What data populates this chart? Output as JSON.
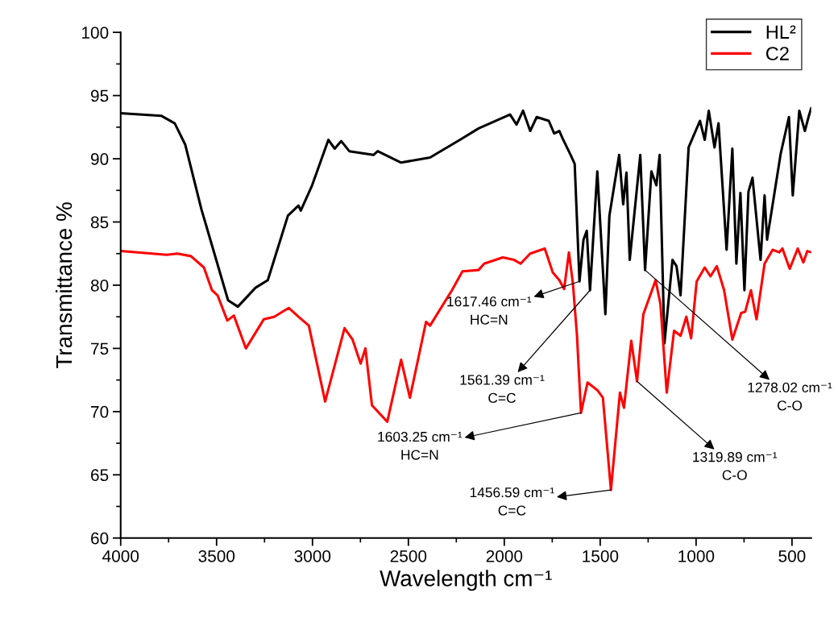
{
  "chart_data": {
    "type": "line",
    "xlabel": "Wavelength cm⁻¹",
    "ylabel": "Transmittance %",
    "xlim": [
      4000,
      400
    ],
    "xticks": [
      4000,
      3500,
      3000,
      2500,
      2000,
      1500,
      1000,
      500
    ],
    "ylim": [
      60,
      100
    ],
    "yticks": [
      60,
      65,
      70,
      75,
      80,
      85,
      90,
      95,
      100
    ],
    "grid": false,
    "legend": "top right",
    "line_style": "solid",
    "marker": "none",
    "series": [
      {
        "name": "HL²",
        "color": "#000000",
        "x": [
          4000,
          3789,
          3718,
          3663,
          3579,
          3440,
          3389,
          3297,
          3233,
          3128,
          3073,
          3061,
          3002,
          2917,
          2884,
          2850,
          2808,
          2682,
          2660,
          2538,
          2387,
          2231,
          2134,
          1970,
          1936,
          1902,
          1865,
          1831,
          1768,
          1740,
          1713,
          1696,
          1654,
          1633,
          1608,
          1587,
          1570,
          1553,
          1515,
          1473,
          1452,
          1401,
          1380,
          1363,
          1346,
          1291,
          1266,
          1233,
          1207,
          1190,
          1165,
          1123,
          1102,
          1081,
          1039,
          980,
          955,
          934,
          904,
          883,
          841,
          811,
          790,
          769,
          748,
          727,
          706,
          664,
          643,
          630,
          559,
          516,
          496,
          462,
          433,
          412,
          400
        ],
        "values": [
          93.6,
          93.4,
          92.8,
          91.1,
          86.0,
          78.8,
          78.3,
          79.8,
          80.4,
          85.5,
          86.3,
          85.9,
          87.9,
          91.5,
          90.8,
          91.4,
          90.6,
          90.3,
          90.6,
          89.7,
          90.1,
          91.5,
          92.4,
          93.5,
          92.7,
          93.8,
          92.2,
          93.3,
          93.0,
          92.0,
          92.2,
          91.6,
          90.3,
          89.6,
          80.3,
          83.6,
          84.3,
          79.6,
          89.0,
          77.7,
          85.5,
          90.3,
          86.4,
          88.9,
          82.0,
          90.3,
          81.2,
          89.0,
          87.9,
          90.3,
          75.4,
          82.0,
          81.5,
          79.2,
          90.9,
          93.0,
          91.5,
          93.8,
          90.9,
          92.8,
          82.8,
          90.8,
          81.7,
          87.3,
          79.6,
          87.4,
          88.5,
          82.0,
          87.1,
          83.6,
          90.4,
          93.3,
          87.1,
          93.8,
          92.2,
          93.4,
          94.0
        ]
      },
      {
        "name": "C2",
        "color": "#ff0000",
        "x": [
          4000,
          3760,
          3705,
          3634,
          3566,
          3524,
          3495,
          3444,
          3410,
          3347,
          3254,
          3200,
          3124,
          3073,
          3019,
          2934,
          2833,
          2791,
          2749,
          2724,
          2690,
          2610,
          2538,
          2492,
          2408,
          2387,
          2273,
          2218,
          2134,
          2105,
          2008,
          1949,
          1915,
          1865,
          1789,
          1747,
          1713,
          1688,
          1663,
          1642,
          1621,
          1600,
          1566,
          1515,
          1486,
          1444,
          1397,
          1376,
          1338,
          1308,
          1275,
          1211,
          1186,
          1153,
          1115,
          1081,
          1051,
          1026,
          997,
          955,
          925,
          892,
          854,
          811,
          765,
          744,
          714,
          685,
          643,
          601,
          567,
          550,
          512,
          470,
          441,
          420,
          400
        ],
        "values": [
          82.7,
          82.4,
          82.5,
          82.3,
          81.4,
          79.6,
          79.2,
          77.2,
          77.6,
          75.0,
          77.3,
          77.5,
          78.2,
          77.5,
          76.8,
          70.8,
          76.6,
          75.7,
          73.8,
          75.0,
          70.5,
          69.2,
          74.1,
          71.1,
          77.1,
          76.8,
          79.6,
          81.1,
          81.2,
          81.7,
          82.2,
          82.0,
          81.7,
          82.5,
          82.9,
          81.0,
          80.4,
          79.7,
          82.6,
          80.1,
          76.0,
          69.9,
          72.3,
          71.7,
          71.1,
          63.8,
          71.5,
          70.3,
          75.6,
          72.4,
          77.7,
          80.4,
          78.5,
          71.5,
          76.4,
          76.0,
          77.5,
          75.8,
          80.3,
          81.4,
          80.7,
          81.5,
          79.6,
          75.7,
          77.8,
          77.9,
          79.6,
          77.3,
          81.7,
          82.8,
          82.6,
          82.9,
          81.3,
          82.9,
          81.8,
          82.7,
          82.6
        ]
      }
    ],
    "annotations": [
      {
        "text": "1617.46 cm⁻¹\nHC=N",
        "x": 1608,
        "y": 80.3
      },
      {
        "text": "1561.39 cm⁻¹\nC=C",
        "x": 1553,
        "y": 79.6
      },
      {
        "text": "1603.25 cm⁻¹\nHC=N",
        "x": 1600,
        "y": 69.9
      },
      {
        "text": "1456.59 cm⁻¹\nC=C",
        "x": 1444,
        "y": 63.8
      },
      {
        "text": "1319.89 cm⁻¹\nC-O",
        "x": 1308,
        "y": 72.4
      },
      {
        "text": "1278.02 cm⁻¹\nC-O",
        "x": 1266,
        "y": 81.2
      }
    ]
  }
}
